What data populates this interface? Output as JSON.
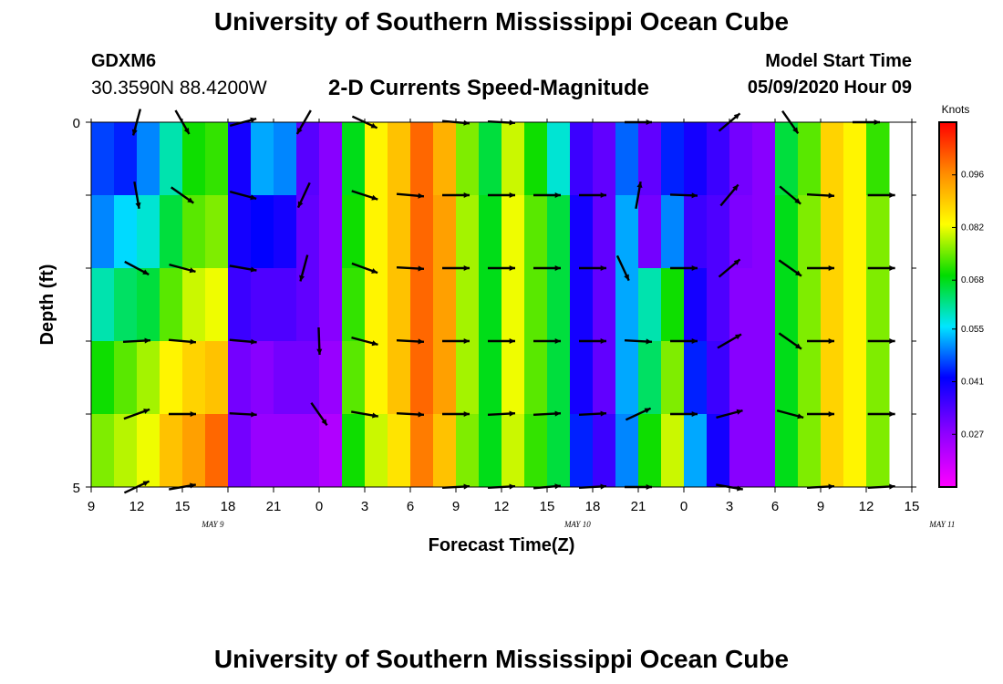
{
  "header": {
    "title": "University of Southern Mississippi Ocean Cube",
    "station": "GDXM6",
    "coordinates": "30.3590N 88.4200W",
    "plot_title": "2-D Currents Speed-Magnitude",
    "model_start_label": "Model Start Time",
    "model_start_value": "05/09/2020 Hour 09"
  },
  "footer": {
    "title": "University of Southern Mississippi Ocean Cube"
  },
  "chart_data": {
    "type": "heatmap",
    "title": "2-D Currents Speed-Magnitude",
    "xlabel": "Forecast Time(Z)",
    "ylabel": "Depth (ft)",
    "x_tick_labels": [
      "9",
      "12",
      "15",
      "18",
      "21",
      "0",
      "3",
      "6",
      "9",
      "12",
      "15",
      "18",
      "21",
      "0",
      "3",
      "6",
      "9",
      "12",
      "15"
    ],
    "date_labels": [
      {
        "text": "MAY 9",
        "hour_index": 8
      },
      {
        "text": "MAY 10",
        "hour_index": 32
      },
      {
        "text": "MAY 11",
        "hour_index": 56
      }
    ],
    "x_range_hours": [
      0,
      54
    ],
    "y_tick_labels": [
      {
        "depth": 0,
        "label": "0"
      },
      {
        "depth": 5,
        "label": "5"
      }
    ],
    "y_range_ft": [
      0,
      5
    ],
    "depth_levels": 5,
    "colorbar": {
      "unit_label": "Knots",
      "min": 0.013,
      "max": 0.11,
      "tick_values": [
        "0.096",
        "0.082",
        "0.068",
        "0.055",
        "0.041",
        "0.027"
      ]
    },
    "column_speeds_knots": [
      [
        0.046,
        0.05,
        0.06,
        0.07,
        0.076
      ],
      [
        0.044,
        0.055,
        0.064,
        0.074,
        0.079
      ],
      [
        0.05,
        0.058,
        0.066,
        0.078,
        0.082
      ],
      [
        0.06,
        0.066,
        0.074,
        0.084,
        0.09
      ],
      [
        0.07,
        0.074,
        0.08,
        0.088,
        0.094
      ],
      [
        0.072,
        0.076,
        0.082,
        0.09,
        0.1
      ],
      [
        0.04,
        0.04,
        0.036,
        0.03,
        0.03
      ],
      [
        0.052,
        0.042,
        0.034,
        0.028,
        0.026
      ],
      [
        0.05,
        0.04,
        0.034,
        0.03,
        0.026
      ],
      [
        0.033,
        0.032,
        0.032,
        0.03,
        0.026
      ],
      [
        0.028,
        0.028,
        0.028,
        0.026,
        0.023
      ],
      [
        0.068,
        0.07,
        0.072,
        0.074,
        0.07
      ],
      [
        0.084,
        0.084,
        0.084,
        0.084,
        0.08
      ],
      [
        0.09,
        0.09,
        0.09,
        0.09,
        0.086
      ],
      [
        0.1,
        0.1,
        0.1,
        0.1,
        0.098
      ],
      [
        0.092,
        0.094,
        0.094,
        0.094,
        0.09
      ],
      [
        0.076,
        0.078,
        0.078,
        0.078,
        0.076
      ],
      [
        0.066,
        0.068,
        0.068,
        0.068,
        0.068
      ],
      [
        0.08,
        0.082,
        0.082,
        0.082,
        0.08
      ],
      [
        0.07,
        0.074,
        0.074,
        0.074,
        0.072
      ],
      [
        0.058,
        0.066,
        0.066,
        0.066,
        0.066
      ],
      [
        0.036,
        0.04,
        0.04,
        0.04,
        0.044
      ],
      [
        0.032,
        0.032,
        0.032,
        0.032,
        0.036
      ],
      [
        0.048,
        0.052,
        0.052,
        0.052,
        0.05
      ],
      [
        0.032,
        0.03,
        0.06,
        0.064,
        0.07
      ],
      [
        0.044,
        0.05,
        0.07,
        0.076,
        0.08
      ],
      [
        0.04,
        0.036,
        0.04,
        0.044,
        0.052
      ],
      [
        0.036,
        0.034,
        0.034,
        0.036,
        0.04
      ],
      [
        0.03,
        0.029,
        0.028,
        0.028,
        0.028
      ],
      [
        0.028,
        0.028,
        0.028,
        0.028,
        0.028
      ],
      [
        0.066,
        0.068,
        0.068,
        0.068,
        0.068
      ],
      [
        0.074,
        0.076,
        0.076,
        0.076,
        0.076
      ],
      [
        0.088,
        0.088,
        0.088,
        0.088,
        0.088
      ],
      [
        0.084,
        0.084,
        0.084,
        0.084,
        0.084
      ],
      [
        0.072,
        0.076,
        0.076,
        0.076,
        0.076
      ]
    ],
    "column_width_hours": [
      1.5,
      1.5,
      1.5,
      1.5,
      1.5,
      1.5,
      1.5,
      1.5,
      1.5,
      1.5,
      1.5,
      1.5,
      1.5,
      1.5,
      1.5,
      1.5,
      1.5,
      1.5,
      1.5,
      1.5,
      1.5,
      1.5,
      1.5,
      1.5,
      1.5,
      1.5,
      1.5,
      1.5,
      1.5,
      1.5,
      1.5,
      1.5,
      1.5,
      1.5,
      1.5
    ],
    "vectors": [
      {
        "hour": 3,
        "depth": 0,
        "angle": 105
      },
      {
        "hour": 6,
        "depth": 0,
        "angle": 60
      },
      {
        "hour": 10,
        "depth": 0,
        "angle": -15
      },
      {
        "hour": 14,
        "depth": 0,
        "angle": 120
      },
      {
        "hour": 18,
        "depth": 0,
        "angle": 25
      },
      {
        "hour": 24,
        "depth": 0,
        "angle": 5
      },
      {
        "hour": 27,
        "depth": 0,
        "angle": 3
      },
      {
        "hour": 36,
        "depth": 0,
        "angle": 0
      },
      {
        "hour": 42,
        "depth": 0,
        "angle": -40
      },
      {
        "hour": 46,
        "depth": 0,
        "angle": 55
      },
      {
        "hour": 51,
        "depth": 0,
        "angle": 0
      },
      {
        "hour": 3,
        "depth": 1,
        "angle": 80
      },
      {
        "hour": 6,
        "depth": 1,
        "angle": 35
      },
      {
        "hour": 10,
        "depth": 1,
        "angle": 15
      },
      {
        "hour": 14,
        "depth": 1,
        "angle": 115
      },
      {
        "hour": 18,
        "depth": 1,
        "angle": 18
      },
      {
        "hour": 21,
        "depth": 1,
        "angle": 5
      },
      {
        "hour": 24,
        "depth": 1,
        "angle": 0
      },
      {
        "hour": 27,
        "depth": 1,
        "angle": 0
      },
      {
        "hour": 30,
        "depth": 1,
        "angle": 0
      },
      {
        "hour": 33,
        "depth": 1,
        "angle": 0
      },
      {
        "hour": 36,
        "depth": 1,
        "angle": -80
      },
      {
        "hour": 39,
        "depth": 1,
        "angle": 2
      },
      {
        "hour": 42,
        "depth": 1,
        "angle": -50
      },
      {
        "hour": 46,
        "depth": 1,
        "angle": 40
      },
      {
        "hour": 48,
        "depth": 1,
        "angle": 3
      },
      {
        "hour": 52,
        "depth": 1,
        "angle": 0
      },
      {
        "hour": 3,
        "depth": 2,
        "angle": 28
      },
      {
        "hour": 6,
        "depth": 2,
        "angle": 15
      },
      {
        "hour": 10,
        "depth": 2,
        "angle": 10
      },
      {
        "hour": 14,
        "depth": 2,
        "angle": 105
      },
      {
        "hour": 18,
        "depth": 2,
        "angle": 20
      },
      {
        "hour": 21,
        "depth": 2,
        "angle": 3
      },
      {
        "hour": 24,
        "depth": 2,
        "angle": 0
      },
      {
        "hour": 27,
        "depth": 2,
        "angle": 0
      },
      {
        "hour": 30,
        "depth": 2,
        "angle": 0
      },
      {
        "hour": 33,
        "depth": 2,
        "angle": 0
      },
      {
        "hour": 35,
        "depth": 2,
        "angle": 65
      },
      {
        "hour": 39,
        "depth": 2,
        "angle": 0
      },
      {
        "hour": 42,
        "depth": 2,
        "angle": -40
      },
      {
        "hour": 46,
        "depth": 2,
        "angle": 35
      },
      {
        "hour": 48,
        "depth": 2,
        "angle": 0
      },
      {
        "hour": 52,
        "depth": 2,
        "angle": 0
      },
      {
        "hour": 3,
        "depth": 3,
        "angle": -3
      },
      {
        "hour": 6,
        "depth": 3,
        "angle": 5
      },
      {
        "hour": 10,
        "depth": 3,
        "angle": 5
      },
      {
        "hour": 15,
        "depth": 3,
        "angle": 88
      },
      {
        "hour": 18,
        "depth": 3,
        "angle": 15
      },
      {
        "hour": 21,
        "depth": 3,
        "angle": 3
      },
      {
        "hour": 24,
        "depth": 3,
        "angle": 0
      },
      {
        "hour": 27,
        "depth": 3,
        "angle": 0
      },
      {
        "hour": 30,
        "depth": 3,
        "angle": 0
      },
      {
        "hour": 33,
        "depth": 3,
        "angle": 0
      },
      {
        "hour": 36,
        "depth": 3,
        "angle": 3
      },
      {
        "hour": 39,
        "depth": 3,
        "angle": 0
      },
      {
        "hour": 42,
        "depth": 3,
        "angle": -30
      },
      {
        "hour": 46,
        "depth": 3,
        "angle": 35
      },
      {
        "hour": 48,
        "depth": 3,
        "angle": 0
      },
      {
        "hour": 52,
        "depth": 3,
        "angle": 0
      },
      {
        "hour": 3,
        "depth": 4,
        "angle": -20
      },
      {
        "hour": 6,
        "depth": 4,
        "angle": 0
      },
      {
        "hour": 10,
        "depth": 4,
        "angle": 3
      },
      {
        "hour": 15,
        "depth": 4,
        "angle": 55
      },
      {
        "hour": 18,
        "depth": 4,
        "angle": 10
      },
      {
        "hour": 21,
        "depth": 4,
        "angle": 3
      },
      {
        "hour": 24,
        "depth": 4,
        "angle": 0
      },
      {
        "hour": 27,
        "depth": 4,
        "angle": -3
      },
      {
        "hour": 30,
        "depth": 4,
        "angle": -3
      },
      {
        "hour": 33,
        "depth": 4,
        "angle": -3
      },
      {
        "hour": 36,
        "depth": 4,
        "angle": -25
      },
      {
        "hour": 39,
        "depth": 4,
        "angle": 0
      },
      {
        "hour": 42,
        "depth": 4,
        "angle": -15
      },
      {
        "hour": 46,
        "depth": 4,
        "angle": 15
      },
      {
        "hour": 48,
        "depth": 4,
        "angle": 0
      },
      {
        "hour": 52,
        "depth": 4,
        "angle": 0
      },
      {
        "hour": 3,
        "depth": 5,
        "angle": -25
      },
      {
        "hour": 6,
        "depth": 5,
        "angle": -10
      },
      {
        "hour": 24,
        "depth": 5,
        "angle": -3
      },
      {
        "hour": 27,
        "depth": 5,
        "angle": -3
      },
      {
        "hour": 30,
        "depth": 5,
        "angle": -5
      },
      {
        "hour": 33,
        "depth": 5,
        "angle": -3
      },
      {
        "hour": 36,
        "depth": 5,
        "angle": 0
      },
      {
        "hour": 42,
        "depth": 5,
        "angle": 10
      },
      {
        "hour": 48,
        "depth": 5,
        "angle": -3
      },
      {
        "hour": 52,
        "depth": 5,
        "angle": -3
      }
    ]
  }
}
